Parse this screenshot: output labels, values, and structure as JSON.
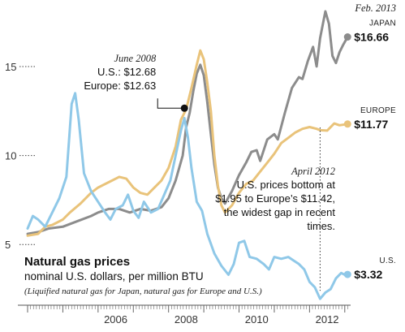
{
  "chart_data": {
    "type": "line",
    "title": "Natural gas prices",
    "subtitle": "nominal U.S. dollars, per million BTU",
    "note": "(Liquified natural gas for Japan, natural gas for Europe and U.S.)",
    "ylim": [
      4.6,
      18.6
    ],
    "xlim": [
      2004.0,
      2013.12
    ],
    "yticks": [
      {
        "value": 5,
        "label": "5"
      },
      {
        "value": 10,
        "label": "10"
      },
      {
        "value": 15,
        "label": "15"
      }
    ],
    "xticks": [
      {
        "value": 2006.5,
        "label": "2006"
      },
      {
        "value": 2008.5,
        "label": "2008"
      },
      {
        "value": 2010.5,
        "label": "2010"
      },
      {
        "value": 2012.5,
        "label": "2012"
      }
    ],
    "series": [
      {
        "name": "JAPAN",
        "color": "#8c8c8c",
        "end_label": "$16.66",
        "points": [
          [
            2004.0,
            5.6
          ],
          [
            2004.3,
            5.7
          ],
          [
            2004.6,
            5.9
          ],
          [
            2005.0,
            6.0
          ],
          [
            2005.4,
            6.3
          ],
          [
            2005.8,
            6.6
          ],
          [
            2006.0,
            6.8
          ],
          [
            2006.3,
            7.0
          ],
          [
            2006.6,
            7.0
          ],
          [
            2006.9,
            6.8
          ],
          [
            2007.2,
            7.0
          ],
          [
            2007.5,
            6.9
          ],
          [
            2007.8,
            7.1
          ],
          [
            2008.0,
            7.6
          ],
          [
            2008.2,
            8.6
          ],
          [
            2008.4,
            10.0
          ],
          [
            2008.5,
            11.6
          ],
          [
            2008.6,
            12.4
          ],
          [
            2008.7,
            13.6
          ],
          [
            2008.8,
            14.6
          ],
          [
            2008.9,
            15.1
          ],
          [
            2009.0,
            14.5
          ],
          [
            2009.1,
            13.0
          ],
          [
            2009.2,
            11.2
          ],
          [
            2009.3,
            9.5
          ],
          [
            2009.4,
            8.2
          ],
          [
            2009.5,
            7.6
          ],
          [
            2009.6,
            7.3
          ],
          [
            2009.8,
            8.0
          ],
          [
            2010.0,
            8.9
          ],
          [
            2010.2,
            9.6
          ],
          [
            2010.35,
            10.2
          ],
          [
            2010.5,
            10.3
          ],
          [
            2010.6,
            9.7
          ],
          [
            2010.8,
            10.9
          ],
          [
            2011.0,
            11.2
          ],
          [
            2011.1,
            10.9
          ],
          [
            2011.3,
            12.4
          ],
          [
            2011.5,
            13.8
          ],
          [
            2011.7,
            14.4
          ],
          [
            2011.8,
            14.3
          ],
          [
            2011.95,
            15.3
          ],
          [
            2012.1,
            16.1
          ],
          [
            2012.2,
            15.0
          ],
          [
            2012.3,
            16.6
          ],
          [
            2012.45,
            18.1
          ],
          [
            2012.55,
            17.4
          ],
          [
            2012.65,
            15.6
          ],
          [
            2012.75,
            15.2
          ],
          [
            2012.85,
            15.8
          ],
          [
            2012.95,
            16.2
          ],
          [
            2013.08,
            16.66
          ]
        ]
      },
      {
        "name": "EUROPE",
        "color": "#e9c37a",
        "end_label": "$11.77",
        "points": [
          [
            2004.0,
            5.5
          ],
          [
            2004.3,
            5.6
          ],
          [
            2004.5,
            6.0
          ],
          [
            2004.7,
            6.1
          ],
          [
            2005.0,
            6.4
          ],
          [
            2005.2,
            6.8
          ],
          [
            2005.5,
            7.3
          ],
          [
            2005.8,
            7.9
          ],
          [
            2006.0,
            8.2
          ],
          [
            2006.3,
            8.5
          ],
          [
            2006.6,
            8.8
          ],
          [
            2006.8,
            8.7
          ],
          [
            2007.0,
            8.2
          ],
          [
            2007.2,
            7.9
          ],
          [
            2007.4,
            7.8
          ],
          [
            2007.6,
            8.2
          ],
          [
            2007.8,
            8.6
          ],
          [
            2008.0,
            9.3
          ],
          [
            2008.2,
            10.5
          ],
          [
            2008.35,
            12.0
          ],
          [
            2008.5,
            12.6
          ],
          [
            2008.65,
            13.8
          ],
          [
            2008.8,
            15.1
          ],
          [
            2008.9,
            15.9
          ],
          [
            2009.0,
            15.4
          ],
          [
            2009.1,
            14.1
          ],
          [
            2009.2,
            12.5
          ],
          [
            2009.3,
            10.0
          ],
          [
            2009.4,
            8.3
          ],
          [
            2009.5,
            7.2
          ],
          [
            2009.6,
            6.8
          ],
          [
            2009.8,
            7.2
          ],
          [
            2010.0,
            7.9
          ],
          [
            2010.2,
            8.4
          ],
          [
            2010.4,
            8.6
          ],
          [
            2010.6,
            9.1
          ],
          [
            2010.8,
            9.6
          ],
          [
            2011.0,
            10.1
          ],
          [
            2011.2,
            10.7
          ],
          [
            2011.4,
            11.0
          ],
          [
            2011.6,
            11.3
          ],
          [
            2011.8,
            11.5
          ],
          [
            2012.0,
            11.6
          ],
          [
            2012.2,
            11.5
          ],
          [
            2012.3,
            11.42
          ],
          [
            2012.5,
            11.4
          ],
          [
            2012.7,
            11.8
          ],
          [
            2012.85,
            11.7
          ],
          [
            2013.08,
            11.77
          ]
        ]
      },
      {
        "name": "U.S.",
        "color": "#8fc8e8",
        "end_label": "$3.32",
        "points": [
          [
            2004.0,
            5.9
          ],
          [
            2004.15,
            6.6
          ],
          [
            2004.3,
            6.4
          ],
          [
            2004.5,
            6.0
          ],
          [
            2004.7,
            6.8
          ],
          [
            2004.9,
            7.6
          ],
          [
            2005.1,
            8.8
          ],
          [
            2005.25,
            12.9
          ],
          [
            2005.35,
            13.5
          ],
          [
            2005.45,
            12.0
          ],
          [
            2005.6,
            9.0
          ],
          [
            2005.8,
            8.0
          ],
          [
            2006.0,
            7.4
          ],
          [
            2006.2,
            6.8
          ],
          [
            2006.35,
            6.4
          ],
          [
            2006.5,
            7.0
          ],
          [
            2006.7,
            7.2
          ],
          [
            2006.85,
            7.8
          ],
          [
            2007.0,
            6.9
          ],
          [
            2007.15,
            6.5
          ],
          [
            2007.3,
            7.4
          ],
          [
            2007.5,
            6.8
          ],
          [
            2007.7,
            7.0
          ],
          [
            2007.9,
            7.9
          ],
          [
            2008.05,
            8.6
          ],
          [
            2008.2,
            10.0
          ],
          [
            2008.35,
            11.4
          ],
          [
            2008.45,
            12.1
          ],
          [
            2008.55,
            11.0
          ],
          [
            2008.65,
            9.3
          ],
          [
            2008.8,
            7.4
          ],
          [
            2008.95,
            6.9
          ],
          [
            2009.1,
            5.6
          ],
          [
            2009.3,
            4.5
          ],
          [
            2009.5,
            3.8
          ],
          [
            2009.7,
            3.3
          ],
          [
            2009.85,
            3.9
          ],
          [
            2010.0,
            5.1
          ],
          [
            2010.15,
            5.2
          ],
          [
            2010.3,
            4.3
          ],
          [
            2010.5,
            4.2
          ],
          [
            2010.7,
            3.9
          ],
          [
            2010.85,
            3.6
          ],
          [
            2011.0,
            4.3
          ],
          [
            2011.2,
            4.2
          ],
          [
            2011.4,
            4.3
          ],
          [
            2011.55,
            4.1
          ],
          [
            2011.7,
            3.9
          ],
          [
            2011.85,
            3.6
          ],
          [
            2012.0,
            2.9
          ],
          [
            2012.15,
            2.6
          ],
          [
            2012.3,
            1.95
          ],
          [
            2012.45,
            2.3
          ],
          [
            2012.6,
            2.5
          ],
          [
            2012.75,
            3.1
          ],
          [
            2012.9,
            3.4
          ],
          [
            2013.0,
            3.3
          ],
          [
            2013.08,
            3.32
          ]
        ]
      }
    ],
    "end_period": "Feb. 2013",
    "annotations": [
      {
        "at": [
          2008.45,
          12.66
        ],
        "lines": [
          "June 2008",
          "U.S.: $12.68",
          "Europe: $12.63"
        ]
      },
      {
        "at": [
          2012.3,
          1.95
        ],
        "lines": [
          "April 2012",
          "U.S. prices bottom at",
          "$1.95 to Europe’s $11.42,",
          "the widest gap in recent",
          "times."
        ]
      }
    ]
  }
}
